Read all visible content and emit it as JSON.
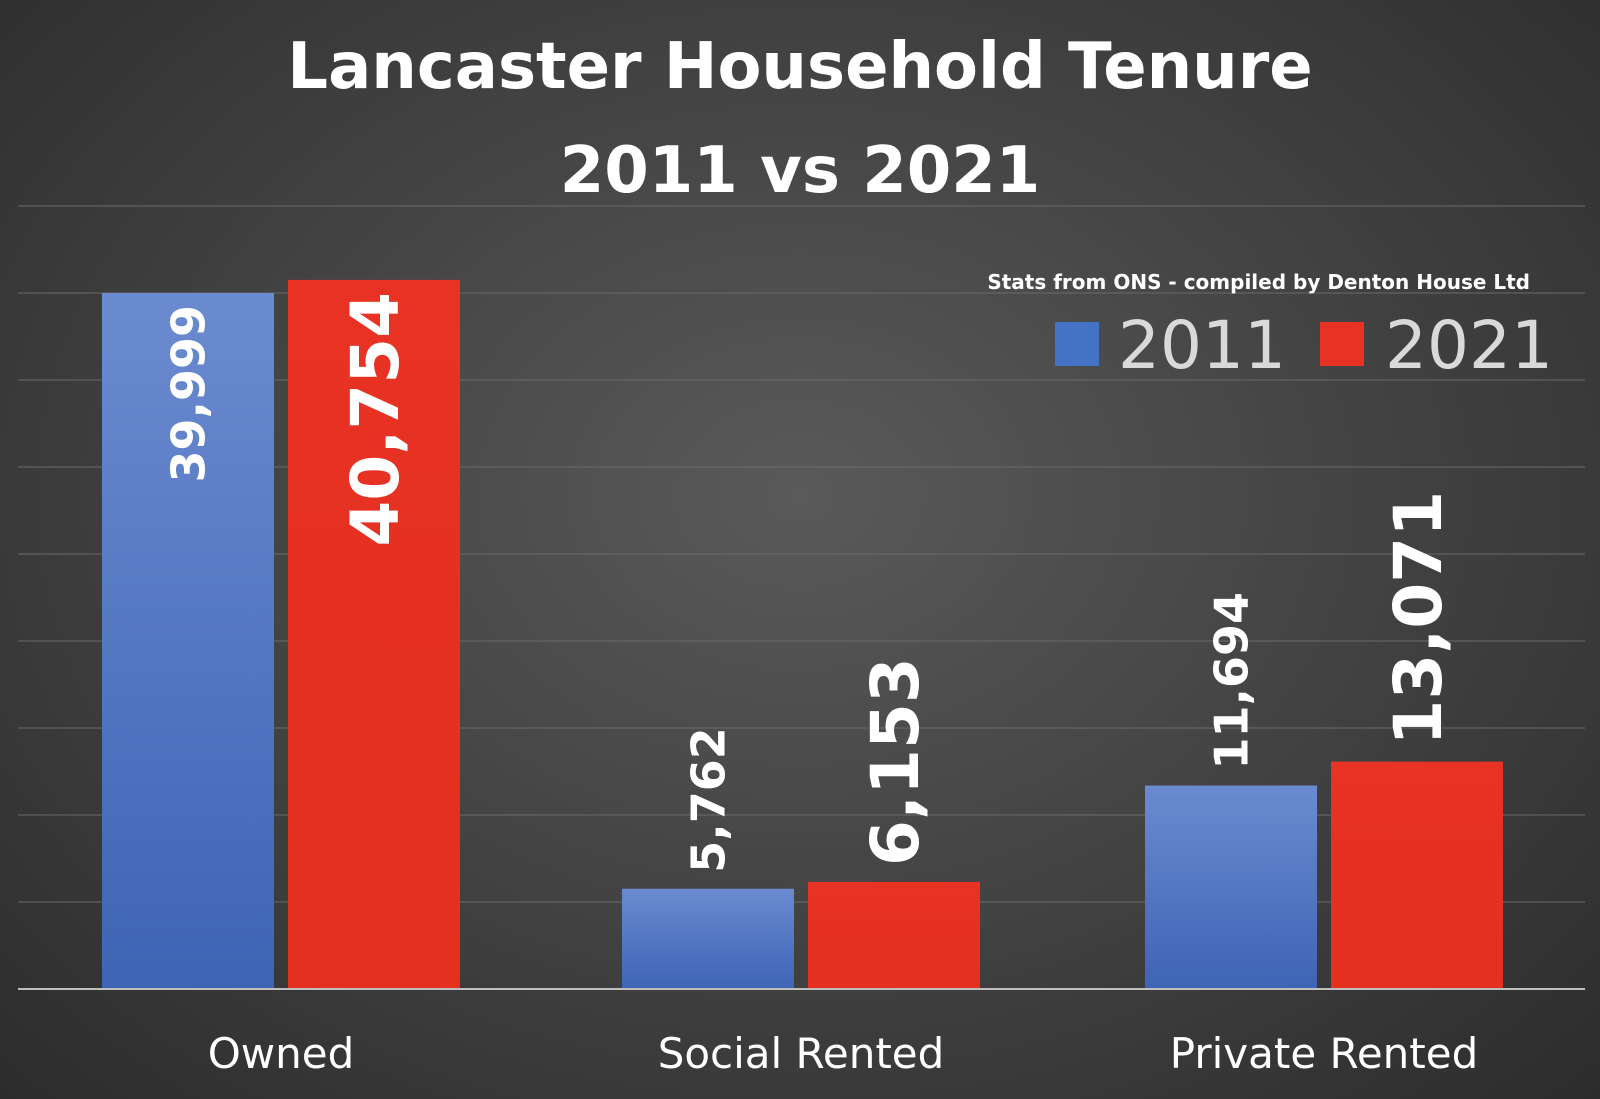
{
  "chart_data": {
    "type": "bar",
    "title": "Lancaster Household Tenure",
    "subtitle": "2011 vs 2021",
    "source": "Stats from ONS - compiled by Denton House Ltd",
    "categories": [
      "Owned",
      "Social Rented",
      "Private Rented"
    ],
    "series": [
      {
        "name": "2011",
        "color": "#4472c4",
        "values": [
          39999,
          5762,
          11694
        ],
        "labels": [
          "39,999",
          "5,762",
          "11,694"
        ]
      },
      {
        "name": "2021",
        "color": "#e83224",
        "values": [
          40754,
          6153,
          13071
        ],
        "labels": [
          "40,754",
          "6,153",
          "13,071"
        ]
      }
    ],
    "ylim": [
      0,
      40000
    ],
    "grid": true,
    "legend": "top-right",
    "xlabel": "",
    "ylabel": ""
  }
}
